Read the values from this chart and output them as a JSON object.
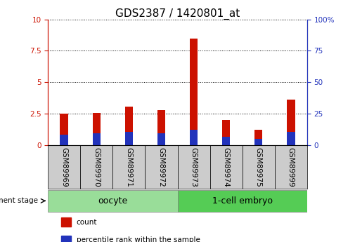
{
  "title": "GDS2387 / 1420801_at",
  "samples": [
    "GSM89969",
    "GSM89970",
    "GSM89971",
    "GSM89972",
    "GSM89973",
    "GSM89974",
    "GSM89975",
    "GSM89999"
  ],
  "count_values": [
    2.5,
    2.55,
    3.05,
    2.8,
    8.5,
    2.0,
    1.2,
    3.6
  ],
  "percentile_values": [
    0.85,
    0.95,
    1.05,
    0.95,
    1.25,
    0.65,
    0.52,
    1.05
  ],
  "count_color": "#cc1100",
  "percentile_color": "#2233bb",
  "ylim_left": [
    0,
    10
  ],
  "ylim_right": [
    0,
    100
  ],
  "yticks_left": [
    0,
    2.5,
    5.0,
    7.5,
    10.0
  ],
  "yticks_right": [
    0,
    25,
    50,
    75,
    100
  ],
  "ytick_labels_left": [
    "0",
    "2.5",
    "5",
    "7.5",
    "10"
  ],
  "ytick_labels_right": [
    "0",
    "25",
    "50",
    "75",
    "100%"
  ],
  "groups": [
    {
      "label": "oocyte",
      "start": 0,
      "end": 4,
      "color": "#99dd99"
    },
    {
      "label": "1-cell embryo",
      "start": 4,
      "end": 8,
      "color": "#55cc55"
    }
  ],
  "group_label_prefix": "development stage",
  "legend_items": [
    {
      "label": "count",
      "color": "#cc1100"
    },
    {
      "label": "percentile rank within the sample",
      "color": "#2233bb"
    }
  ],
  "grid_color": "black",
  "bar_width": 0.25,
  "tick_box_color": "#cccccc",
  "title_fontsize": 11,
  "tick_fontsize": 7.5,
  "label_fontsize": 9
}
